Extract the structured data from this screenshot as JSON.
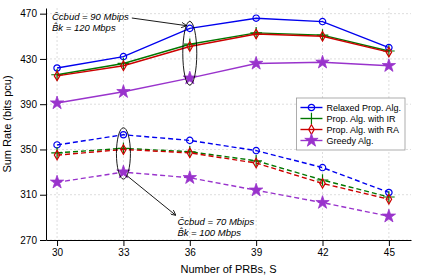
{
  "chart_data": {
    "type": "line",
    "x": [
      30,
      33,
      36,
      39,
      42,
      45
    ],
    "xlabel": "Number of PRBs, S",
    "ylabel": "Sum Rate (bits pcu)",
    "xlim": [
      29.5,
      46
    ],
    "ylim": [
      270,
      475
    ],
    "xticks": [
      30,
      33,
      36,
      39,
      42,
      45
    ],
    "yticks": [
      270,
      310,
      350,
      390,
      430,
      470
    ],
    "grid": true,
    "legend": "center right",
    "annotations": [
      "Ĉcbud = 90 Mbips",
      "B̂k = 120 Mbps",
      "Ĉcbud = 70 Mbips",
      "B̂k = 100 Mbps"
    ],
    "series": [
      {
        "name": "Relaxed Prop. Alg.",
        "color": "#0000ee",
        "marker": "circle",
        "line_style": "solid",
        "values": [
          422,
          432,
          457,
          466,
          463,
          440
        ]
      },
      {
        "name": "Prop. Alg. with IR",
        "color": "#007700",
        "marker": "plus",
        "line_style": "solid",
        "values": [
          416,
          426,
          443,
          453,
          451,
          437
        ]
      },
      {
        "name": "Prop. Alg. with RA",
        "color": "#cc0000",
        "marker": "diamond",
        "line_style": "solid",
        "values": [
          415,
          424,
          441,
          452,
          450,
          436
        ]
      },
      {
        "name": "Greedy Alg.",
        "color": "#9933cc",
        "marker": "star",
        "line_style": "solid",
        "values": [
          391,
          401,
          413,
          426,
          427,
          424
        ]
      },
      {
        "color": "#0000ee",
        "marker": "circle",
        "line_style": "dashed",
        "values": [
          354,
          363,
          358,
          349,
          334,
          312
        ]
      },
      {
        "color": "#007700",
        "marker": "plus",
        "line_style": "dashed",
        "values": [
          347,
          351,
          348,
          340,
          323,
          308
        ]
      },
      {
        "color": "#cc0000",
        "marker": "diamond",
        "line_style": "dashed",
        "values": [
          345,
          350,
          347,
          338,
          320,
          306
        ]
      },
      {
        "color": "#9933cc",
        "marker": "star",
        "line_style": "dashed",
        "values": [
          321,
          330,
          325,
          314,
          303,
          291
        ]
      }
    ]
  }
}
